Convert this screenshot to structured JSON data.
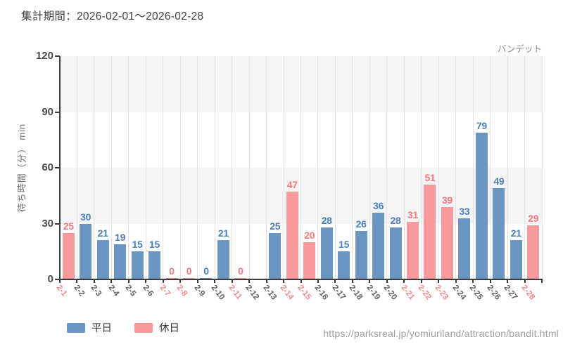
{
  "header": {
    "title": "集計期間：2026-02-01〜2026-02-28",
    "attraction": "バンデット"
  },
  "footer": {
    "url": "https://parksreal.jp/yomiuriland/attraction/bandit.html"
  },
  "colors": {
    "weekday_bar": "#6b96c1",
    "holiday_bar": "#f8999b",
    "weekday_value_label": "#4a80b7",
    "holiday_value_label": "#f5797d",
    "weekday_tick_label": "#606266",
    "holiday_tick_label": "#f58a8d",
    "band_fill": "#f4f4f6",
    "gridline": "#e3e3e6",
    "axis": "#3c3c3c"
  },
  "chart_data": {
    "type": "bar",
    "title": "集計期間：2026-02-01〜2026-02-28",
    "subtitle": "バンデット",
    "xlabel": "",
    "ylabel": "待ち時間（分） min",
    "ylim": [
      0,
      120
    ],
    "yticks": [
      0,
      30,
      60,
      90,
      120
    ],
    "grid": "vertical lines at day boundaries; gray horizontal bands 30-60 and 90-120",
    "legend_position": "bottom-left",
    "categories": [
      "2-1",
      "2-2",
      "2-3",
      "2-4",
      "2-5",
      "2-6",
      "2-7",
      "2-8",
      "2-9",
      "2-10",
      "2-11",
      "2-12",
      "2-13",
      "2-14",
      "2-15",
      "2-16",
      "2-17",
      "2-18",
      "2-19",
      "2-20",
      "2-21",
      "2-22",
      "2-23",
      "2-24",
      "2-25",
      "2-26",
      "2-27",
      "2-28"
    ],
    "day_types": [
      "holiday",
      "weekday",
      "weekday",
      "weekday",
      "weekday",
      "weekday",
      "holiday",
      "holiday",
      "weekday",
      "weekday",
      "holiday",
      "weekday",
      "weekday",
      "holiday",
      "holiday",
      "weekday",
      "weekday",
      "weekday",
      "weekday",
      "weekday",
      "holiday",
      "holiday",
      "holiday",
      "weekday",
      "weekday",
      "weekday",
      "weekday",
      "holiday"
    ],
    "series": [
      {
        "name": "平日",
        "color": "#6b96c1",
        "label_color": "#4a80b7",
        "tick_color": "#606266",
        "values": [
          null,
          30,
          21,
          19,
          15,
          15,
          null,
          null,
          0,
          21,
          null,
          null,
          25,
          null,
          null,
          28,
          15,
          26,
          36,
          28,
          null,
          null,
          null,
          33,
          79,
          49,
          21,
          null
        ]
      },
      {
        "name": "休日",
        "color": "#f8999b",
        "label_color": "#f5797d",
        "tick_color": "#f58a8d",
        "values": [
          25,
          null,
          null,
          null,
          null,
          null,
          0,
          0,
          null,
          null,
          0,
          null,
          null,
          47,
          20,
          null,
          null,
          null,
          null,
          null,
          31,
          51,
          39,
          null,
          null,
          null,
          null,
          29
        ]
      }
    ]
  }
}
